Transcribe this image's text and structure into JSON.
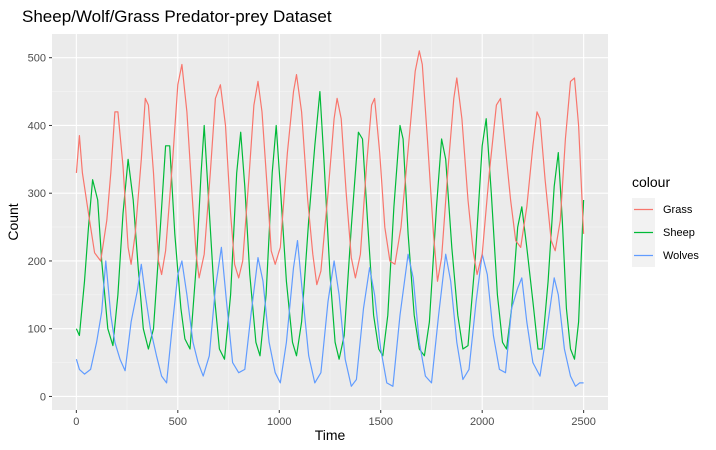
{
  "chart_data": {
    "type": "line",
    "title": "Sheep/Wolf/Grass Predator-prey Dataset",
    "xlabel": "Time",
    "ylabel": "Count",
    "xlim": [
      -120,
      2620
    ],
    "ylim": [
      -20,
      535
    ],
    "x_ticks": [
      0,
      500,
      1000,
      1500,
      2000,
      2500
    ],
    "y_ticks": [
      0,
      100,
      200,
      300,
      400,
      500
    ],
    "grid": true,
    "legend": {
      "title": "colour",
      "position": "right"
    },
    "series": [
      {
        "name": "Grass",
        "color": "#F8766D",
        "points": [
          [
            0,
            330
          ],
          [
            15,
            385
          ],
          [
            30,
            330
          ],
          [
            60,
            270
          ],
          [
            90,
            212
          ],
          [
            120,
            200
          ],
          [
            150,
            260
          ],
          [
            170,
            330
          ],
          [
            190,
            420
          ],
          [
            205,
            420
          ],
          [
            230,
            340
          ],
          [
            255,
            220
          ],
          [
            270,
            195
          ],
          [
            290,
            240
          ],
          [
            320,
            350
          ],
          [
            340,
            440
          ],
          [
            355,
            430
          ],
          [
            380,
            330
          ],
          [
            405,
            200
          ],
          [
            420,
            180
          ],
          [
            440,
            215
          ],
          [
            475,
            350
          ],
          [
            500,
            460
          ],
          [
            520,
            490
          ],
          [
            545,
            420
          ],
          [
            570,
            300
          ],
          [
            590,
            210
          ],
          [
            605,
            175
          ],
          [
            630,
            210
          ],
          [
            660,
            330
          ],
          [
            685,
            440
          ],
          [
            710,
            460
          ],
          [
            735,
            400
          ],
          [
            760,
            270
          ],
          [
            780,
            195
          ],
          [
            800,
            175
          ],
          [
            820,
            200
          ],
          [
            850,
            320
          ],
          [
            875,
            430
          ],
          [
            895,
            465
          ],
          [
            915,
            420
          ],
          [
            940,
            310
          ],
          [
            960,
            215
          ],
          [
            980,
            195
          ],
          [
            1005,
            220
          ],
          [
            1040,
            360
          ],
          [
            1070,
            450
          ],
          [
            1085,
            475
          ],
          [
            1110,
            420
          ],
          [
            1140,
            290
          ],
          [
            1165,
            210
          ],
          [
            1185,
            165
          ],
          [
            1205,
            185
          ],
          [
            1240,
            300
          ],
          [
            1270,
            410
          ],
          [
            1285,
            440
          ],
          [
            1305,
            410
          ],
          [
            1330,
            300
          ],
          [
            1355,
            205
          ],
          [
            1375,
            175
          ],
          [
            1400,
            210
          ],
          [
            1430,
            340
          ],
          [
            1455,
            430
          ],
          [
            1470,
            440
          ],
          [
            1495,
            360
          ],
          [
            1520,
            250
          ],
          [
            1545,
            200
          ],
          [
            1570,
            195
          ],
          [
            1600,
            250
          ],
          [
            1640,
            380
          ],
          [
            1670,
            480
          ],
          [
            1690,
            510
          ],
          [
            1705,
            490
          ],
          [
            1730,
            380
          ],
          [
            1760,
            240
          ],
          [
            1780,
            170
          ],
          [
            1800,
            205
          ],
          [
            1830,
            330
          ],
          [
            1860,
            440
          ],
          [
            1875,
            470
          ],
          [
            1900,
            410
          ],
          [
            1930,
            290
          ],
          [
            1955,
            215
          ],
          [
            1975,
            180
          ],
          [
            2000,
            210
          ],
          [
            2035,
            330
          ],
          [
            2070,
            430
          ],
          [
            2090,
            440
          ],
          [
            2110,
            380
          ],
          [
            2140,
            290
          ],
          [
            2165,
            230
          ],
          [
            2190,
            220
          ],
          [
            2220,
            280
          ],
          [
            2250,
            370
          ],
          [
            2270,
            420
          ],
          [
            2285,
            410
          ],
          [
            2310,
            320
          ],
          [
            2340,
            230
          ],
          [
            2360,
            215
          ],
          [
            2385,
            260
          ],
          [
            2410,
            380
          ],
          [
            2435,
            465
          ],
          [
            2455,
            470
          ],
          [
            2475,
            400
          ],
          [
            2500,
            240
          ]
        ]
      },
      {
        "name": "Sheep",
        "color": "#00BA38",
        "points": [
          [
            0,
            100
          ],
          [
            15,
            90
          ],
          [
            40,
            170
          ],
          [
            60,
            250
          ],
          [
            80,
            320
          ],
          [
            105,
            290
          ],
          [
            125,
            200
          ],
          [
            155,
            100
          ],
          [
            180,
            75
          ],
          [
            205,
            150
          ],
          [
            230,
            270
          ],
          [
            255,
            350
          ],
          [
            280,
            290
          ],
          [
            305,
            190
          ],
          [
            330,
            100
          ],
          [
            355,
            70
          ],
          [
            380,
            100
          ],
          [
            410,
            230
          ],
          [
            440,
            370
          ],
          [
            460,
            370
          ],
          [
            485,
            240
          ],
          [
            515,
            130
          ],
          [
            535,
            85
          ],
          [
            560,
            70
          ],
          [
            590,
            190
          ],
          [
            615,
            330
          ],
          [
            630,
            400
          ],
          [
            650,
            300
          ],
          [
            680,
            150
          ],
          [
            705,
            70
          ],
          [
            730,
            55
          ],
          [
            760,
            150
          ],
          [
            790,
            330
          ],
          [
            810,
            390
          ],
          [
            830,
            310
          ],
          [
            855,
            180
          ],
          [
            885,
            80
          ],
          [
            905,
            60
          ],
          [
            935,
            150
          ],
          [
            965,
            330
          ],
          [
            985,
            400
          ],
          [
            1005,
            310
          ],
          [
            1035,
            170
          ],
          [
            1065,
            80
          ],
          [
            1085,
            60
          ],
          [
            1110,
            110
          ],
          [
            1145,
            260
          ],
          [
            1175,
            370
          ],
          [
            1200,
            450
          ],
          [
            1220,
            350
          ],
          [
            1250,
            180
          ],
          [
            1275,
            80
          ],
          [
            1295,
            55
          ],
          [
            1320,
            90
          ],
          [
            1355,
            250
          ],
          [
            1390,
            390
          ],
          [
            1410,
            380
          ],
          [
            1435,
            260
          ],
          [
            1465,
            120
          ],
          [
            1490,
            70
          ],
          [
            1510,
            60
          ],
          [
            1535,
            120
          ],
          [
            1565,
            280
          ],
          [
            1595,
            400
          ],
          [
            1610,
            380
          ],
          [
            1635,
            240
          ],
          [
            1665,
            120
          ],
          [
            1690,
            70
          ],
          [
            1715,
            60
          ],
          [
            1740,
            110
          ],
          [
            1775,
            280
          ],
          [
            1800,
            380
          ],
          [
            1820,
            350
          ],
          [
            1850,
            220
          ],
          [
            1880,
            120
          ],
          [
            1905,
            70
          ],
          [
            1930,
            75
          ],
          [
            1965,
            200
          ],
          [
            2000,
            370
          ],
          [
            2020,
            410
          ],
          [
            2045,
            300
          ],
          [
            2075,
            150
          ],
          [
            2100,
            80
          ],
          [
            2120,
            70
          ],
          [
            2145,
            130
          ],
          [
            2175,
            250
          ],
          [
            2195,
            280
          ],
          [
            2220,
            220
          ],
          [
            2250,
            140
          ],
          [
            2275,
            70
          ],
          [
            2295,
            70
          ],
          [
            2325,
            170
          ],
          [
            2355,
            310
          ],
          [
            2375,
            360
          ],
          [
            2395,
            260
          ],
          [
            2415,
            130
          ],
          [
            2435,
            70
          ],
          [
            2455,
            55
          ],
          [
            2475,
            110
          ],
          [
            2500,
            290
          ]
        ]
      },
      {
        "name": "Wolves",
        "color": "#619CFF",
        "points": [
          [
            0,
            55
          ],
          [
            15,
            40
          ],
          [
            40,
            33
          ],
          [
            70,
            40
          ],
          [
            100,
            80
          ],
          [
            125,
            125
          ],
          [
            145,
            200
          ],
          [
            170,
            120
          ],
          [
            190,
            80
          ],
          [
            215,
            55
          ],
          [
            240,
            38
          ],
          [
            270,
            110
          ],
          [
            300,
            155
          ],
          [
            320,
            195
          ],
          [
            340,
            150
          ],
          [
            365,
            100
          ],
          [
            395,
            60
          ],
          [
            420,
            30
          ],
          [
            445,
            20
          ],
          [
            475,
            110
          ],
          [
            500,
            180
          ],
          [
            520,
            200
          ],
          [
            545,
            150
          ],
          [
            575,
            80
          ],
          [
            600,
            50
          ],
          [
            625,
            30
          ],
          [
            655,
            60
          ],
          [
            685,
            160
          ],
          [
            715,
            220
          ],
          [
            740,
            140
          ],
          [
            770,
            50
          ],
          [
            800,
            35
          ],
          [
            830,
            40
          ],
          [
            860,
            120
          ],
          [
            895,
            205
          ],
          [
            920,
            170
          ],
          [
            950,
            80
          ],
          [
            980,
            35
          ],
          [
            1005,
            20
          ],
          [
            1035,
            80
          ],
          [
            1070,
            190
          ],
          [
            1090,
            230
          ],
          [
            1115,
            150
          ],
          [
            1145,
            60
          ],
          [
            1175,
            20
          ],
          [
            1205,
            35
          ],
          [
            1240,
            140
          ],
          [
            1270,
            200
          ],
          [
            1295,
            150
          ],
          [
            1325,
            55
          ],
          [
            1355,
            15
          ],
          [
            1380,
            25
          ],
          [
            1415,
            130
          ],
          [
            1445,
            190
          ],
          [
            1470,
            150
          ],
          [
            1500,
            70
          ],
          [
            1530,
            20
          ],
          [
            1560,
            15
          ],
          [
            1595,
            120
          ],
          [
            1635,
            210
          ],
          [
            1660,
            175
          ],
          [
            1690,
            80
          ],
          [
            1720,
            30
          ],
          [
            1750,
            20
          ],
          [
            1785,
            120
          ],
          [
            1820,
            210
          ],
          [
            1845,
            170
          ],
          [
            1875,
            80
          ],
          [
            1905,
            25
          ],
          [
            1935,
            40
          ],
          [
            1970,
            140
          ],
          [
            2000,
            210
          ],
          [
            2025,
            180
          ],
          [
            2055,
            90
          ],
          [
            2085,
            40
          ],
          [
            2115,
            35
          ],
          [
            2145,
            130
          ],
          [
            2175,
            160
          ],
          [
            2195,
            175
          ],
          [
            2220,
            110
          ],
          [
            2250,
            50
          ],
          [
            2285,
            30
          ],
          [
            2320,
            100
          ],
          [
            2355,
            175
          ],
          [
            2375,
            150
          ],
          [
            2405,
            70
          ],
          [
            2435,
            30
          ],
          [
            2460,
            15
          ],
          [
            2480,
            20
          ],
          [
            2500,
            20
          ]
        ]
      }
    ]
  }
}
